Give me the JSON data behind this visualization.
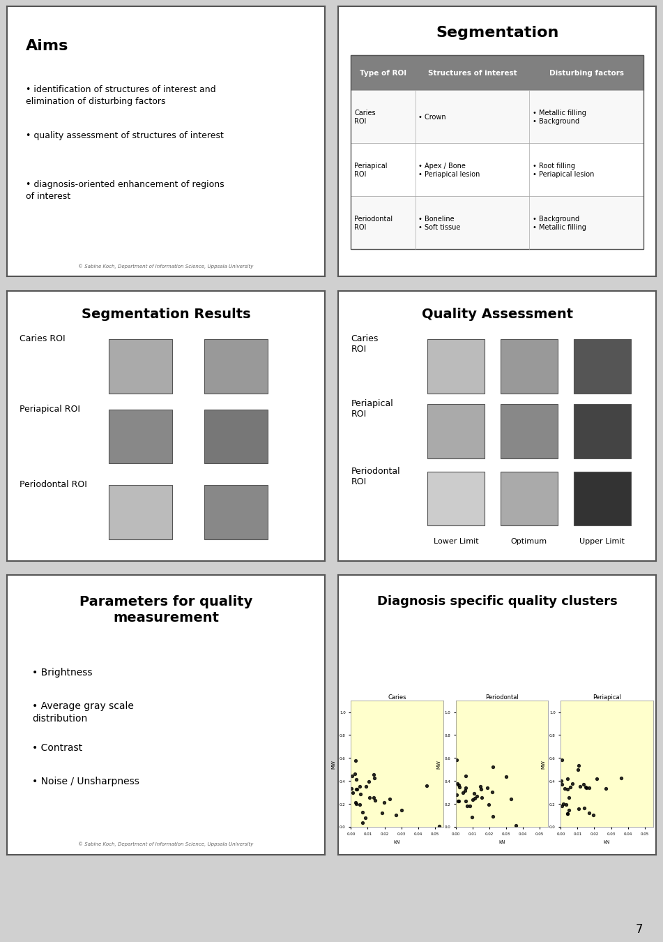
{
  "background_color": "#d0d0d0",
  "slide_bg": "#ffffff",
  "panel_bg": "#ffffff",
  "page_number": "7",
  "panel1": {
    "title": "Aims",
    "bullets": [
      "identification of structures of interest and\nelimination of disturbing factors",
      "quality assessment of structures of interest",
      "diagnosis-oriented enhancement of regions\nof interest"
    ],
    "footnote": "© Sabine Koch, Department of Information Science, Uppsala University"
  },
  "panel2": {
    "title": "Segmentation",
    "header_bg": "#808080",
    "header_color": "#ffffff",
    "headers": [
      "Type of ROI",
      "Structures of interest",
      "Disturbing factors"
    ],
    "rows": [
      {
        "type": "Caries\nROI",
        "structures": "• Crown",
        "disturbing": "• Metallic filling\n• Background"
      },
      {
        "type": "Periapical\nROI",
        "structures": "• Apex / Bone\n• Periapical lesion",
        "disturbing": "• Root filling\n• Periapical lesion"
      },
      {
        "type": "Periodontal\nROI",
        "structures": "• Boneline\n• Soft tissue",
        "disturbing": "• Background\n• Metallic filling"
      }
    ]
  },
  "panel3": {
    "title": "Segmentation Results",
    "rows": [
      {
        "label": "Caries ROI"
      },
      {
        "label": "Periapical ROI"
      },
      {
        "label": "Periodontal ROI"
      }
    ]
  },
  "panel4": {
    "title": "Quality Assessment",
    "rows": [
      {
        "label": "Caries\nROI"
      },
      {
        "label": "Periapical\nROI"
      },
      {
        "label": "Periodontal\nROI"
      }
    ],
    "col_labels": [
      "Lower Limit",
      "Optimum",
      "Upper Limit"
    ]
  },
  "panel5": {
    "title": "Parameters for quality\nmeasurement",
    "bullets": [
      "Brightness",
      "Average gray scale\ndistribution",
      "Contrast",
      "Noise / Unsharpness"
    ],
    "footnote": "© Sabine Koch, Department of Information Science, Uppsala University"
  },
  "panel6": {
    "title": "Diagnosis specific quality clusters",
    "plot_bg": "#ffffcc",
    "plot_titles": [
      "Caries",
      "Periodontal",
      "Periapical"
    ],
    "xlabel": "kN",
    "ylabel": "MW"
  }
}
